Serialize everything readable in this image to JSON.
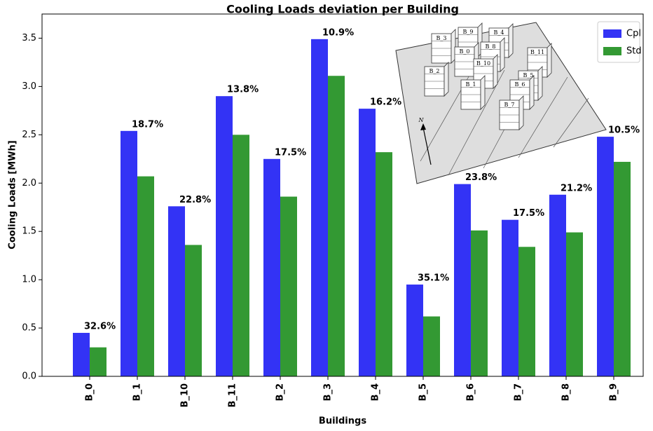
{
  "chart_data": {
    "type": "bar",
    "title": "Cooling Loads deviation per Building",
    "x_label": "Buildings",
    "y_label": "Cooling Loads [MWh]",
    "categories": [
      "B_0",
      "B_1",
      "B_10",
      "B_11",
      "B_2",
      "B_3",
      "B_4",
      "B_5",
      "B_6",
      "B_7",
      "B_8",
      "B_9"
    ],
    "series": [
      {
        "name": "Cpl",
        "color": "#3333f5",
        "values": [
          0.45,
          2.54,
          1.76,
          2.9,
          2.25,
          3.49,
          2.77,
          0.95,
          1.99,
          1.62,
          1.88,
          2.48
        ]
      },
      {
        "name": "Std",
        "color": "#339933",
        "values": [
          0.3,
          2.07,
          1.36,
          2.5,
          1.86,
          3.11,
          2.32,
          0.62,
          1.51,
          1.34,
          1.49,
          2.22
        ]
      }
    ],
    "annotations": [
      "32.6%",
      "18.7%",
      "22.8%",
      "13.8%",
      "17.5%",
      "10.9%",
      "16.2%",
      "35.1%",
      "23.8%",
      "17.5%",
      "21.2%",
      "10.5%"
    ],
    "ylim": [
      0,
      3.75
    ],
    "yticks": [
      {
        "value": 0,
        "label": "0.0"
      },
      0.5,
      {
        "value": 1,
        "label": "1.0"
      },
      1.5,
      {
        "value": 2,
        "label": "2.0"
      },
      2.5,
      {
        "value": 3,
        "label": "3.0"
      },
      3.5
    ],
    "legend": "upper right"
  },
  "inset": {
    "labels": [
      "B_9",
      "B_3",
      "B_4",
      "B_0",
      "B_8",
      "B_10",
      "B_2",
      "B_1",
      "B_11",
      "B_5",
      "B_6",
      "B_7"
    ],
    "north": "N"
  }
}
